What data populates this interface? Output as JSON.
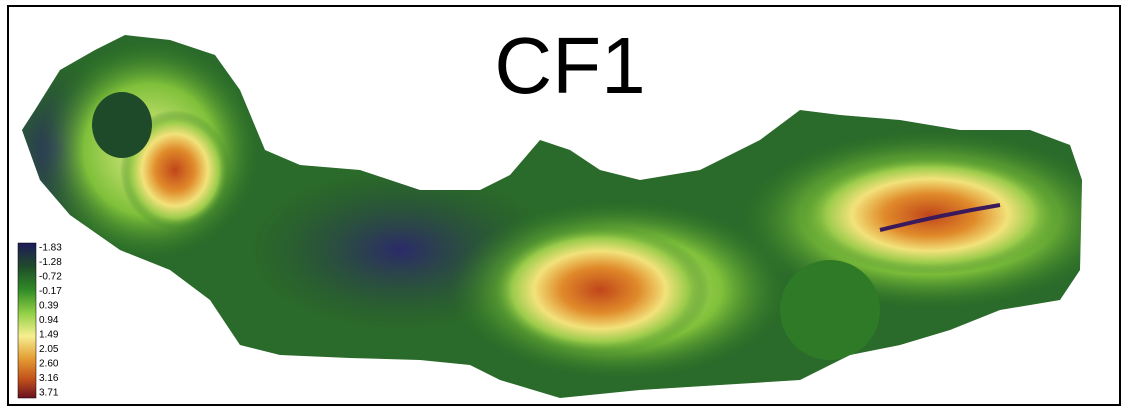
{
  "title": "CF1",
  "legend": {
    "labels": [
      "-1.83",
      "-1.28",
      "-0.72",
      "-0.17",
      "0.39",
      "0.94",
      "1.49",
      "2.05",
      "2.60",
      "3.16",
      "3.71"
    ]
  }
}
